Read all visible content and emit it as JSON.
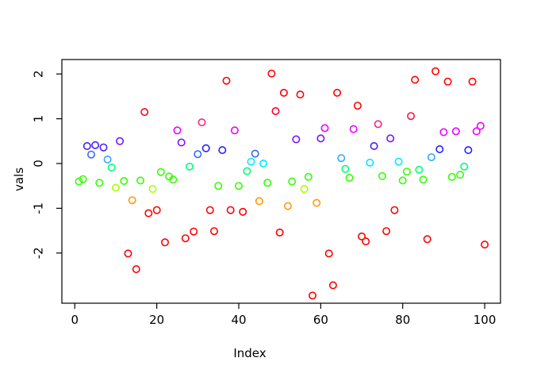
{
  "chart_data": {
    "type": "scatter",
    "title": "",
    "xlabel": "Index",
    "ylabel": "vals",
    "x_ticks": [
      0,
      20,
      40,
      60,
      80,
      100
    ],
    "y_ticks": [
      -2,
      -1,
      0,
      1,
      2
    ],
    "xlim": [
      0,
      100
    ],
    "ylim": [
      -2.95,
      2.06
    ],
    "grid": false,
    "legend": "none",
    "marker": "open-circle",
    "palette": {
      "r": "#FF0000",
      "r2": "#FF0022",
      "r3": "#FF1144",
      "rs": "#FF2277",
      "o": "#FF9900",
      "ch": "#AAFF00",
      "g": "#33FF00",
      "sg": "#00FF77",
      "cy": "#00E8FF",
      "sk": "#33A8FF",
      "ry": "#3366FF",
      "b": "#2222FF",
      "bv": "#4422FF",
      "p": "#7716FF",
      "m": "#EE00FF"
    },
    "points": [
      [
        1,
        -0.4,
        "g"
      ],
      [
        2,
        -0.35,
        "g"
      ],
      [
        3,
        0.39,
        "bv"
      ],
      [
        4,
        0.2,
        "ry"
      ],
      [
        5,
        0.41,
        "bv"
      ],
      [
        6,
        -0.43,
        "g"
      ],
      [
        7,
        0.36,
        "bv"
      ],
      [
        8,
        0.09,
        "sk"
      ],
      [
        9,
        -0.09,
        "sg"
      ],
      [
        10,
        -0.54,
        "ch"
      ],
      [
        11,
        0.5,
        "p"
      ],
      [
        12,
        -0.39,
        "g"
      ],
      [
        13,
        -2.01,
        "r"
      ],
      [
        14,
        -0.82,
        "o"
      ],
      [
        15,
        -2.36,
        "r"
      ],
      [
        16,
        -0.38,
        "g"
      ],
      [
        17,
        1.15,
        "r2"
      ],
      [
        18,
        -1.11,
        "r"
      ],
      [
        19,
        -0.57,
        "ch"
      ],
      [
        20,
        -1.04,
        "r"
      ],
      [
        21,
        -0.19,
        "g"
      ],
      [
        22,
        -1.76,
        "r"
      ],
      [
        23,
        -0.29,
        "g"
      ],
      [
        24,
        -0.36,
        "g"
      ],
      [
        25,
        0.74,
        "m"
      ],
      [
        26,
        0.47,
        "p"
      ],
      [
        27,
        -1.67,
        "r"
      ],
      [
        28,
        -0.07,
        "sg"
      ],
      [
        29,
        -1.52,
        "r"
      ],
      [
        30,
        0.21,
        "ry"
      ],
      [
        31,
        0.92,
        "rs"
      ],
      [
        32,
        0.34,
        "b"
      ],
      [
        33,
        -1.04,
        "r"
      ],
      [
        34,
        -1.51,
        "r"
      ],
      [
        35,
        -0.5,
        "g"
      ],
      [
        36,
        0.3,
        "b"
      ],
      [
        37,
        1.85,
        "r"
      ],
      [
        38,
        -1.04,
        "r"
      ],
      [
        39,
        0.74,
        "m"
      ],
      [
        40,
        -0.5,
        "g"
      ],
      [
        41,
        -1.08,
        "r"
      ],
      [
        42,
        -0.17,
        "sg"
      ],
      [
        43,
        0.04,
        "cy"
      ],
      [
        44,
        0.22,
        "ry"
      ],
      [
        45,
        -0.84,
        "o"
      ],
      [
        46,
        0.0,
        "cy"
      ],
      [
        47,
        -0.43,
        "g"
      ],
      [
        48,
        2.01,
        "r"
      ],
      [
        49,
        1.17,
        "r2"
      ],
      [
        50,
        -1.54,
        "r"
      ],
      [
        51,
        1.58,
        "r"
      ],
      [
        52,
        -0.95,
        "o"
      ],
      [
        53,
        -0.4,
        "g"
      ],
      [
        54,
        0.54,
        "p"
      ],
      [
        55,
        1.54,
        "r"
      ],
      [
        56,
        -0.57,
        "ch"
      ],
      [
        57,
        -0.3,
        "g"
      ],
      [
        58,
        -2.95,
        "r"
      ],
      [
        59,
        -0.88,
        "o"
      ],
      [
        60,
        0.56,
        "p"
      ],
      [
        61,
        0.79,
        "m"
      ],
      [
        62,
        -2.01,
        "r"
      ],
      [
        63,
        -2.72,
        "r"
      ],
      [
        64,
        1.58,
        "r"
      ],
      [
        65,
        0.12,
        "sk"
      ],
      [
        66,
        -0.12,
        "sg"
      ],
      [
        67,
        -0.32,
        "g"
      ],
      [
        68,
        0.77,
        "m"
      ],
      [
        69,
        1.29,
        "r"
      ],
      [
        70,
        -1.63,
        "r"
      ],
      [
        71,
        -1.74,
        "r"
      ],
      [
        72,
        0.02,
        "cy"
      ],
      [
        73,
        0.39,
        "bv"
      ],
      [
        74,
        0.88,
        "rs"
      ],
      [
        75,
        -0.28,
        "g"
      ],
      [
        76,
        -1.51,
        "r"
      ],
      [
        77,
        0.56,
        "p"
      ],
      [
        78,
        -1.04,
        "r"
      ],
      [
        79,
        0.04,
        "cy"
      ],
      [
        80,
        -0.38,
        "g"
      ],
      [
        81,
        -0.18,
        "g"
      ],
      [
        82,
        1.06,
        "r3"
      ],
      [
        83,
        1.87,
        "r"
      ],
      [
        84,
        -0.14,
        "sg"
      ],
      [
        85,
        -0.36,
        "g"
      ],
      [
        86,
        -1.69,
        "r"
      ],
      [
        87,
        0.14,
        "sk"
      ],
      [
        88,
        2.06,
        "r"
      ],
      [
        89,
        0.32,
        "b"
      ],
      [
        90,
        0.7,
        "m"
      ],
      [
        91,
        1.83,
        "r"
      ],
      [
        92,
        -0.3,
        "g"
      ],
      [
        93,
        0.72,
        "m"
      ],
      [
        94,
        -0.25,
        "g"
      ],
      [
        95,
        -0.07,
        "sg"
      ],
      [
        96,
        0.3,
        "b"
      ],
      [
        97,
        1.83,
        "r"
      ],
      [
        98,
        0.72,
        "m"
      ],
      [
        99,
        0.84,
        "m"
      ],
      [
        100,
        -1.81,
        "r"
      ]
    ]
  }
}
